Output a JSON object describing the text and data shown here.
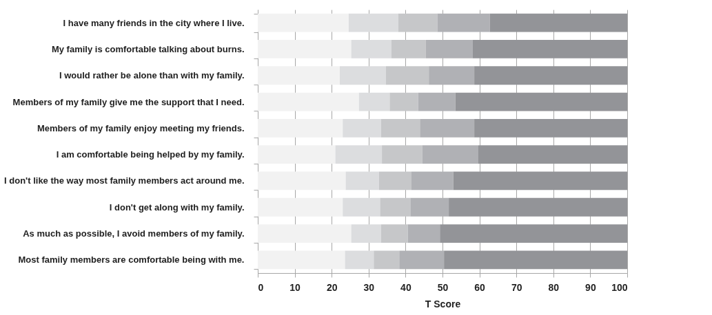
{
  "chart_data": {
    "type": "bar",
    "orientation": "horizontal",
    "stacked": true,
    "xlabel": "T Score",
    "categories": [
      "I have many friends in the city where I live.",
      "My family is comfortable talking about burns.",
      "I would rather be alone than with my family.",
      "Members of my family give me the support that I need.",
      "Members of my family enjoy meeting my friends.",
      "I am comfortable being helped by my family.",
      "I don't like the way most family members act around me.",
      "I don't get along with my family.",
      "As much as possible, I avoid members of my family.",
      "Most family members are comfortable being with me."
    ],
    "series": [
      {
        "color": "#f2f2f2",
        "values": [
          24.6,
          25.3,
          22.2,
          27.4,
          23.0,
          21.0,
          23.8,
          23.0,
          25.3,
          23.6
        ]
      },
      {
        "color": "#dcdddf",
        "values": [
          13.4,
          10.9,
          12.5,
          8.3,
          10.4,
          12.6,
          9.0,
          10.1,
          8.1,
          7.8
        ]
      },
      {
        "color": "#c6c7c9",
        "values": [
          10.6,
          9.3,
          11.6,
          7.7,
          10.5,
          10.9,
          8.8,
          8.2,
          7.2,
          6.9
        ]
      },
      {
        "color": "#b0b1b5",
        "values": [
          14.2,
          12.7,
          12.3,
          10.1,
          14.7,
          15.2,
          11.3,
          10.4,
          8.7,
          12.1
        ]
      },
      {
        "color": "#939498",
        "values": [
          37.2,
          41.8,
          41.4,
          46.5,
          41.4,
          40.3,
          47.1,
          48.3,
          50.7,
          49.6
        ]
      }
    ],
    "xlim": [
      0,
      100
    ],
    "xticks": [
      0,
      10,
      20,
      30,
      40,
      50,
      60,
      70,
      80,
      90,
      100
    ],
    "grid": "x",
    "legend": false
  }
}
